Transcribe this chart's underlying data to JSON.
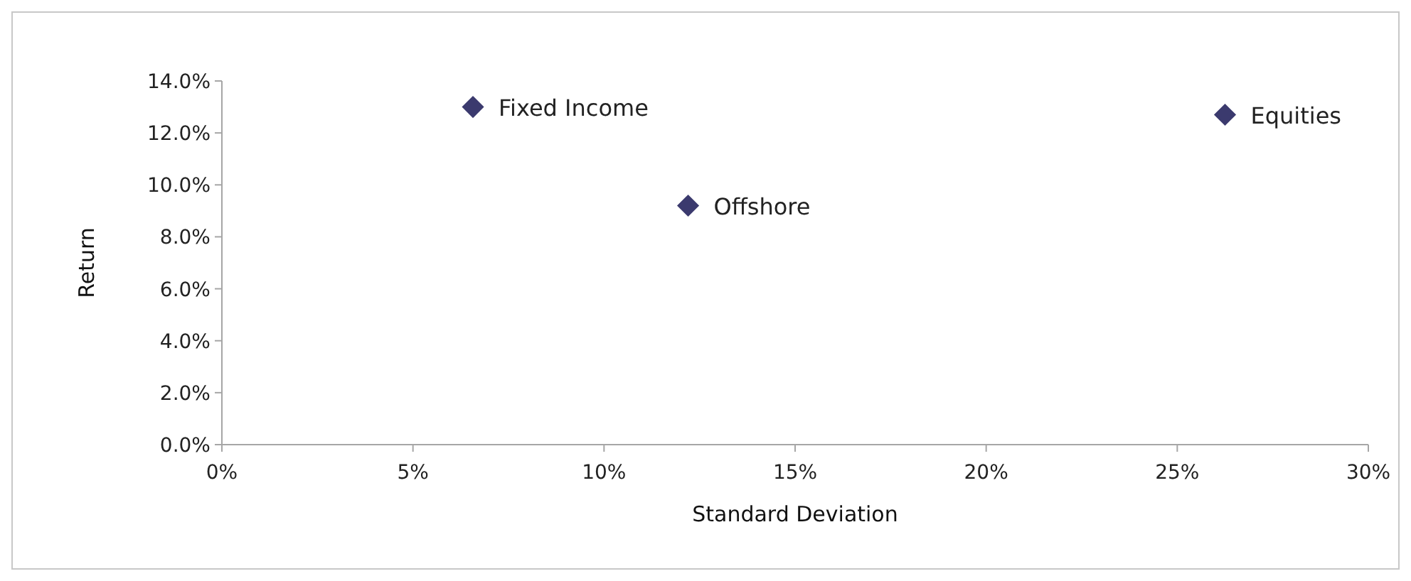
{
  "chart_data": {
    "type": "scatter",
    "xlabel": "Standard Deviation",
    "ylabel": "Return",
    "x": [
      6.57,
      12.2,
      26.25
    ],
    "series": [
      {
        "color": "#3b3a6e",
        "values": [
          13.0,
          9.2,
          12.7
        ]
      }
    ],
    "marker": "diamond",
    "grid": false,
    "xlim": [
      0,
      30
    ],
    "ylim": [
      0,
      14
    ],
    "xticks": [
      {
        "value": 0,
        "label": "0%"
      },
      {
        "value": 5,
        "label": "5%"
      },
      {
        "value": 10,
        "label": "10%"
      },
      {
        "value": 15,
        "label": "15%"
      },
      {
        "value": 20,
        "label": "20%"
      },
      {
        "value": 25,
        "label": "25%"
      },
      {
        "value": 30,
        "label": "30%"
      }
    ],
    "yticks": [
      {
        "value": 0,
        "label": "0.0%"
      },
      {
        "value": 2,
        "label": "2.0%"
      },
      {
        "value": 4,
        "label": "4.0%"
      },
      {
        "value": 6,
        "label": "6.0%"
      },
      {
        "value": 8,
        "label": "8.0%"
      },
      {
        "value": 10,
        "label": "10.0%"
      },
      {
        "value": 12,
        "label": "12.0%"
      },
      {
        "value": 14,
        "label": "14.0%"
      }
    ],
    "annotations": [
      {
        "text": "Fixed Income",
        "x": 6.57,
        "y": 13.0
      },
      {
        "text": "Offshore",
        "x": 12.2,
        "y": 9.2
      },
      {
        "text": "Equities",
        "x": 26.25,
        "y": 12.7
      }
    ]
  }
}
